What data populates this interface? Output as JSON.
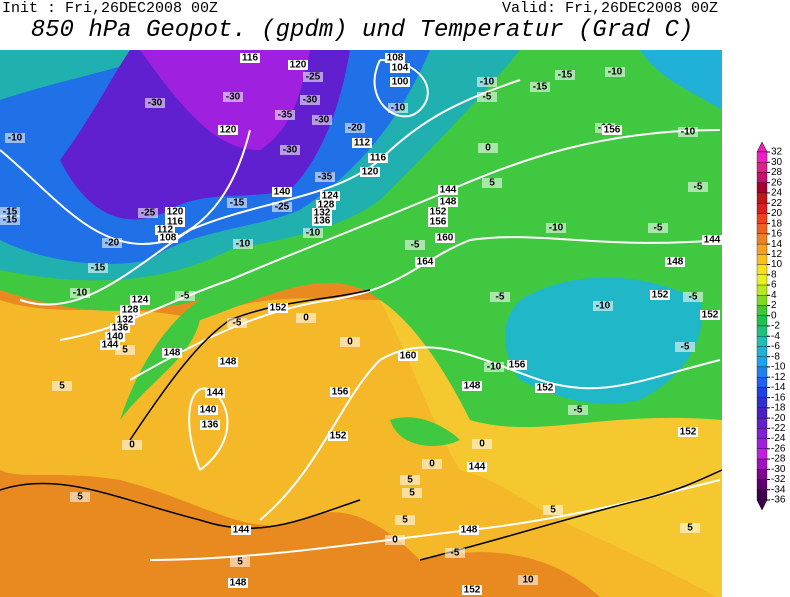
{
  "header": {
    "init": "Init : Fri,26DEC2008 00Z",
    "valid": "Valid: Fri,26DEC2008 00Z",
    "title": "850 hPa Geopot. (gpdm) und Temperatur (Grad C)"
  },
  "colorbar": {
    "levels": [
      32,
      30,
      28,
      26,
      24,
      22,
      20,
      18,
      16,
      14,
      12,
      10,
      8,
      6,
      4,
      2,
      0,
      -2,
      -4,
      -6,
      -8,
      -10,
      -12,
      -14,
      -16,
      -18,
      -20,
      -22,
      -24,
      -26,
      -28,
      -30,
      -32,
      -34,
      -36
    ],
    "colors": [
      "#f020c0",
      "#e0208a",
      "#c8106a",
      "#a80030",
      "#c01818",
      "#d82020",
      "#f04020",
      "#f06020",
      "#f08020",
      "#f8a020",
      "#f8c020",
      "#f8e020",
      "#e8f020",
      "#b8e820",
      "#80d820",
      "#40c830",
      "#20c050",
      "#20c080",
      "#20c0b0",
      "#20b0d8",
      "#20a0f0",
      "#2080f0",
      "#2060f0",
      "#2040e0",
      "#3030d0",
      "#4820c8",
      "#6020d0",
      "#8020d8",
      "#a020e0",
      "#c020e0",
      "#a010c0",
      "#800090",
      "#600070",
      "#400050"
    ]
  },
  "map": {
    "geopotential_labels": [
      116,
      120,
      108,
      104,
      100,
      120,
      112,
      116,
      120,
      156,
      144,
      148,
      152,
      156,
      160,
      164,
      140,
      124,
      128,
      132,
      136,
      120,
      116,
      112,
      108,
      124,
      128,
      132,
      136,
      140,
      144,
      148,
      152,
      148,
      144,
      140,
      136,
      156,
      152,
      160,
      156,
      152,
      148,
      144,
      152,
      148,
      152,
      152,
      144,
      148,
      144,
      148,
      152
    ],
    "temperature_labels": [
      -10,
      -30,
      -30,
      -25,
      -30,
      -35,
      -30,
      -20,
      -30,
      -35,
      -25,
      -15,
      -25,
      -15,
      -15,
      -20,
      -15,
      -10,
      -10,
      -10,
      -5,
      -5,
      5,
      -5,
      -10,
      -10,
      -5,
      -15,
      -15,
      -10,
      -10,
      -10,
      -5,
      -5,
      -10,
      -5,
      -10,
      -5,
      -5,
      -10,
      -5,
      0,
      0,
      0,
      5,
      5,
      0,
      0,
      0,
      5,
      5,
      5,
      0,
      -5,
      5,
      5,
      5,
      5,
      10
    ]
  }
}
